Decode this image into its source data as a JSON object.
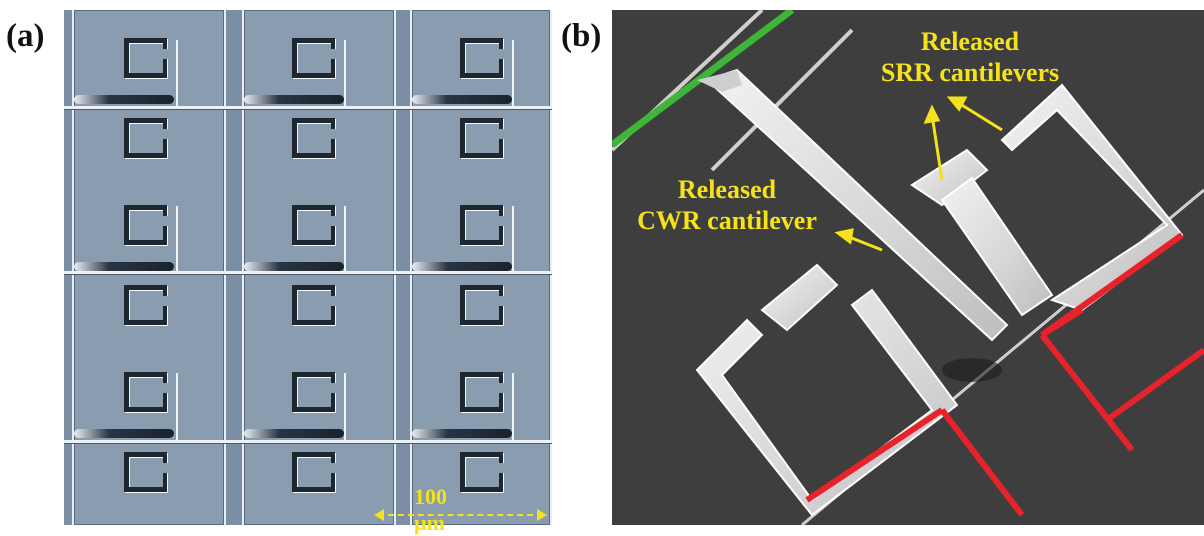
{
  "figure": {
    "panel_a": {
      "label": "(a)",
      "scale_bar_text": "100 µm"
    },
    "panel_b": {
      "label": "(b)",
      "annotation_srr_line1": "Released",
      "annotation_srr_line2": "SRR cantilevers",
      "annotation_cwr_line1": "Released",
      "annotation_cwr_line2": "CWR cantilever"
    },
    "colors": {
      "annotation": "#f5e21b",
      "green_line": "#3fb63a",
      "red_line": "#e8222a",
      "sem_background": "#3e3e3e",
      "optical_background": "#7c8ea3"
    }
  }
}
